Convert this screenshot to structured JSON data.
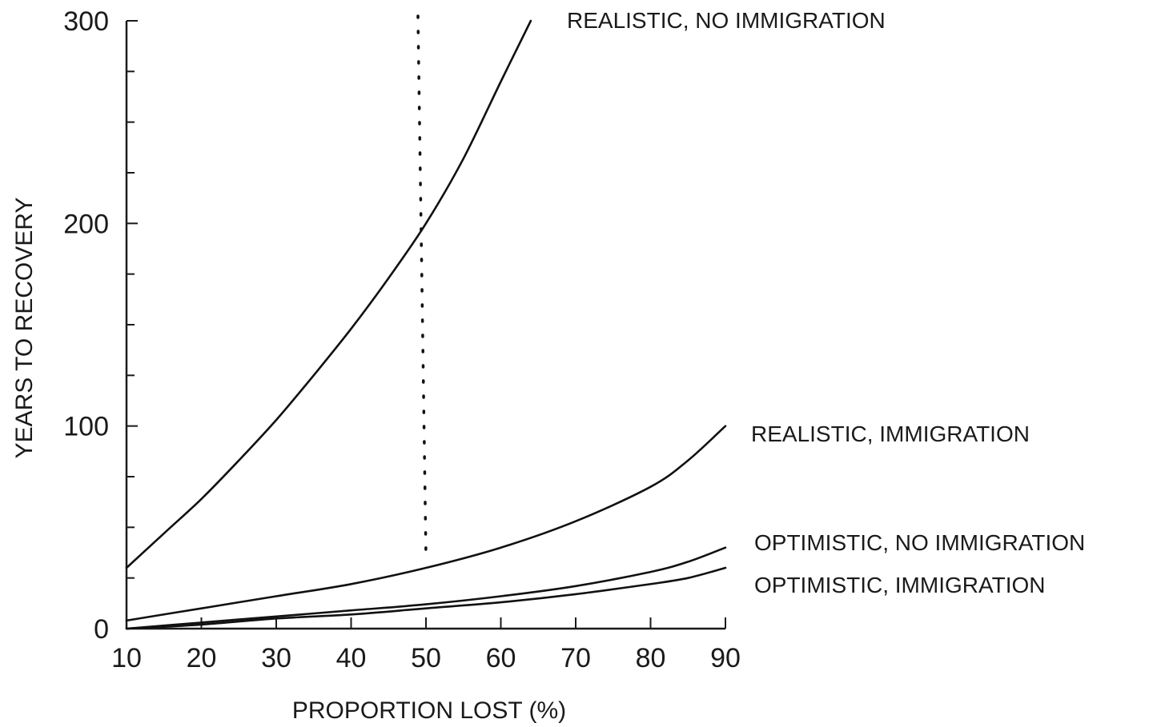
{
  "chart_data": {
    "type": "line",
    "title": "",
    "xlabel": "PROPORTION LOST (%)",
    "ylabel": "YEARS TO RECOVERY",
    "xlim": [
      10,
      90
    ],
    "ylim": [
      0,
      300
    ],
    "x_ticks": [
      10,
      20,
      30,
      40,
      50,
      60,
      70,
      80,
      90
    ],
    "y_ticks": [
      0,
      100,
      200,
      300
    ],
    "grid": false,
    "legend": "none",
    "reference_line": {
      "x": 50,
      "style": "dotted"
    },
    "series": [
      {
        "name": "REALISTIC, NO IMMIGRATION",
        "x": [
          10,
          15,
          20,
          25,
          30,
          35,
          40,
          45,
          50,
          55,
          60,
          64
        ],
        "values": [
          30,
          47,
          64,
          83,
          103,
          125,
          148,
          173,
          200,
          232,
          270,
          300
        ]
      },
      {
        "name": "REALISTIC, IMMIGRATION",
        "x": [
          10,
          20,
          30,
          40,
          50,
          60,
          70,
          80,
          85,
          90
        ],
        "values": [
          4,
          10,
          16,
          22,
          30,
          40,
          53,
          70,
          83,
          100
        ]
      },
      {
        "name": "OPTIMISTIC, NO IMMIGRATION",
        "x": [
          10,
          20,
          30,
          40,
          50,
          60,
          70,
          80,
          85,
          90
        ],
        "values": [
          0,
          3,
          6,
          9,
          12,
          16,
          21,
          28,
          33,
          40
        ]
      },
      {
        "name": "OPTIMISTIC, IMMIGRATION",
        "x": [
          10,
          20,
          30,
          40,
          50,
          60,
          70,
          80,
          85,
          90
        ],
        "values": [
          0,
          2,
          5,
          7,
          10,
          13,
          17,
          22,
          25,
          30
        ]
      }
    ]
  }
}
